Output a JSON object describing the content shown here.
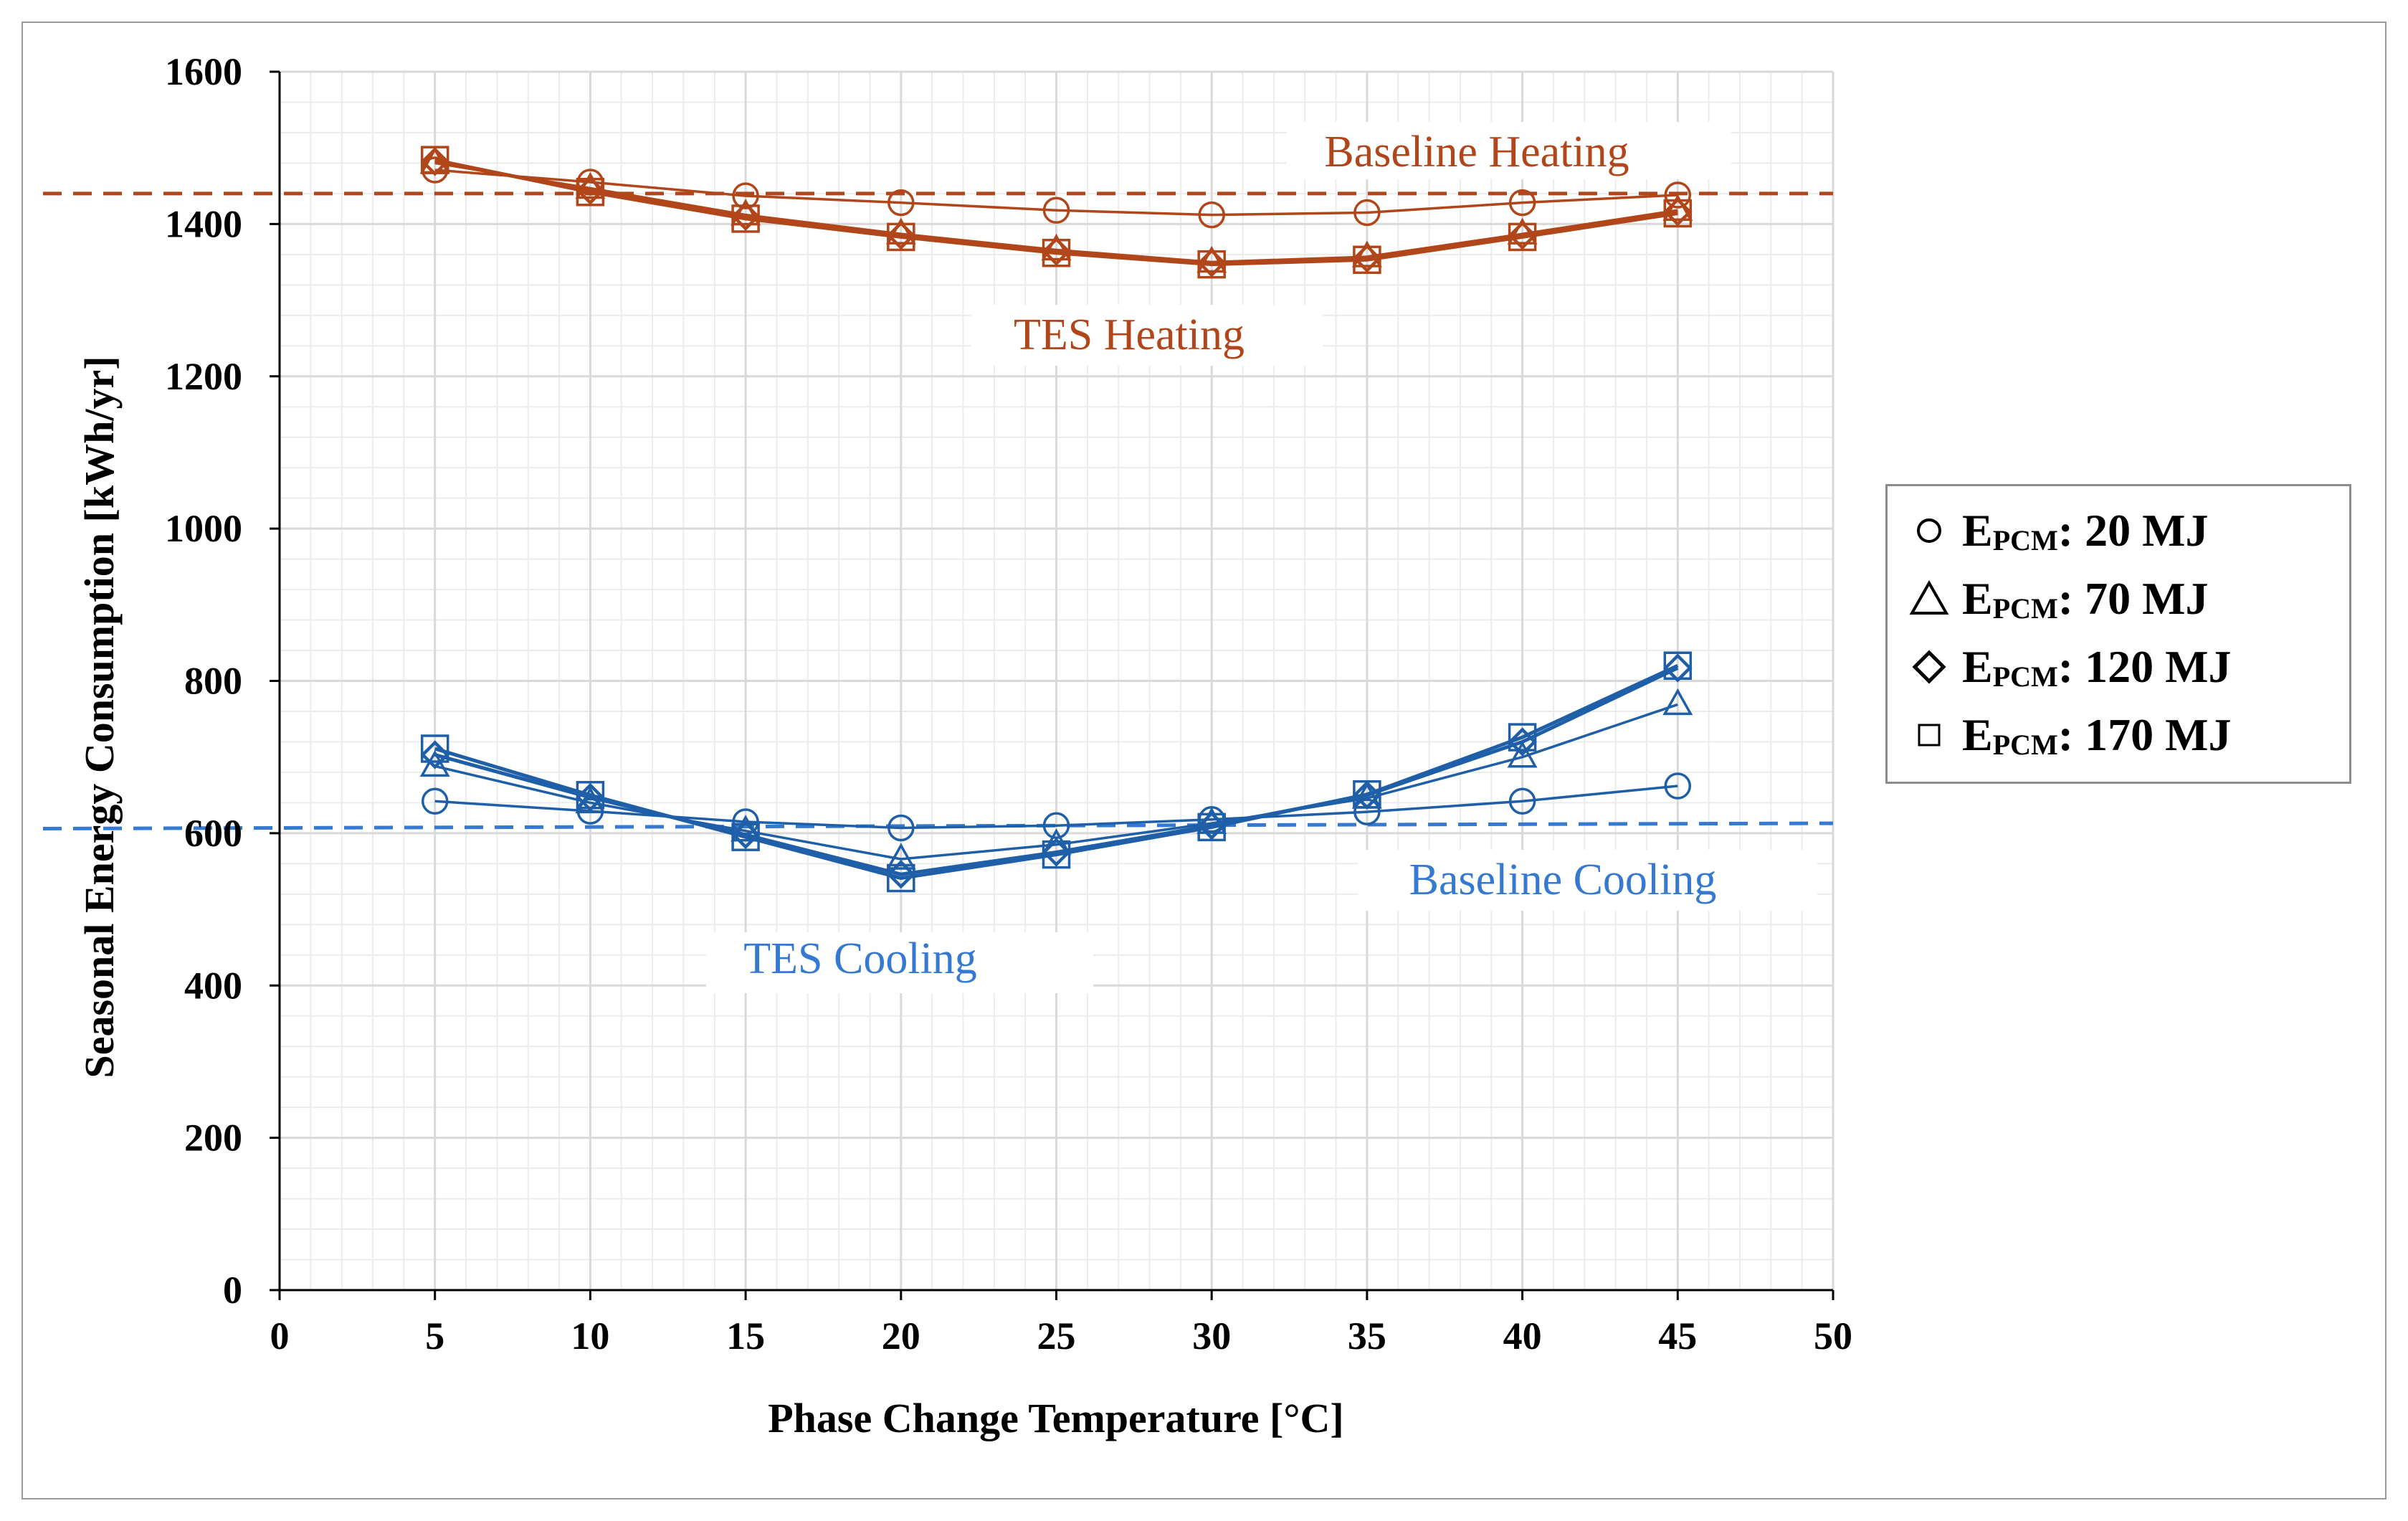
{
  "chart_data": {
    "type": "line",
    "xlabel": "Phase Change Temperature [°C]",
    "ylabel": "Seasonal Energy Consumption [kWh/yr]",
    "xlim": [
      0,
      50
    ],
    "ylim": [
      0,
      1600
    ],
    "xticks": [
      0,
      5,
      10,
      15,
      20,
      25,
      30,
      35,
      40,
      45,
      50
    ],
    "yticks": [
      0,
      200,
      400,
      600,
      800,
      1000,
      1200,
      1400,
      1600
    ],
    "grid": true,
    "x": [
      5,
      10,
      15,
      20,
      25,
      30,
      35,
      40,
      45
    ],
    "colors": {
      "heating": "#B0461A",
      "cooling": "#1F5FA8",
      "baseline_cooling": "#3579D0",
      "grid": "#d9d9d9"
    },
    "series": [
      {
        "name": "Heating E_PCM: 20 MJ",
        "group": "heating",
        "marker": "circle",
        "values": [
          1471,
          1455,
          1437,
          1428,
          1418,
          1412,
          1415,
          1428,
          1438
        ]
      },
      {
        "name": "Heating E_PCM: 70 MJ",
        "group": "heating",
        "marker": "triangle",
        "values": [
          1480,
          1447,
          1412,
          1387,
          1366,
          1350,
          1357,
          1387,
          1418
        ]
      },
      {
        "name": "Heating E_PCM: 120 MJ",
        "group": "heating",
        "marker": "diamond",
        "values": [
          1482,
          1444,
          1410,
          1385,
          1364,
          1349,
          1355,
          1385,
          1416
        ]
      },
      {
        "name": "Heating E_PCM: 170 MJ",
        "group": "heating",
        "marker": "square",
        "values": [
          1484,
          1442,
          1407,
          1383,
          1362,
          1347,
          1353,
          1383,
          1414
        ]
      },
      {
        "name": "Cooling E_PCM: 20 MJ",
        "group": "cooling",
        "marker": "circle",
        "values": [
          642,
          629,
          615,
          607,
          610,
          618,
          628,
          642,
          662
        ]
      },
      {
        "name": "Cooling E_PCM: 70 MJ",
        "group": "cooling",
        "marker": "triangle",
        "values": [
          688,
          640,
          603,
          566,
          585,
          613,
          646,
          700,
          769
        ]
      },
      {
        "name": "Cooling E_PCM: 120 MJ",
        "group": "cooling",
        "marker": "diamond",
        "values": [
          703,
          647,
          598,
          546,
          575,
          610,
          650,
          720,
          817
        ]
      },
      {
        "name": "Cooling E_PCM: 170 MJ",
        "group": "cooling",
        "marker": "square",
        "values": [
          711,
          650,
          595,
          541,
          572,
          608,
          651,
          726,
          820
        ]
      }
    ],
    "baselines": [
      {
        "name": "Baseline Heating",
        "group": "heating",
        "value": 1440
      },
      {
        "name": "Baseline Cooling",
        "group": "cooling",
        "value_start": 606,
        "value_end": 613
      }
    ],
    "annotations": {
      "baseline_heating": "Baseline Heating",
      "tes_heating": "TES Heating",
      "baseline_cooling": "Baseline Cooling",
      "tes_cooling": "TES Cooling"
    },
    "legend": {
      "position": "right",
      "prefix": "E",
      "subscript": "PCM",
      "items": [
        {
          "marker": "circle",
          "label": ": 20 MJ"
        },
        {
          "marker": "triangle",
          "label": ": 70 MJ"
        },
        {
          "marker": "diamond",
          "label": ": 120 MJ"
        },
        {
          "marker": "square",
          "label": ": 170 MJ"
        }
      ]
    }
  }
}
